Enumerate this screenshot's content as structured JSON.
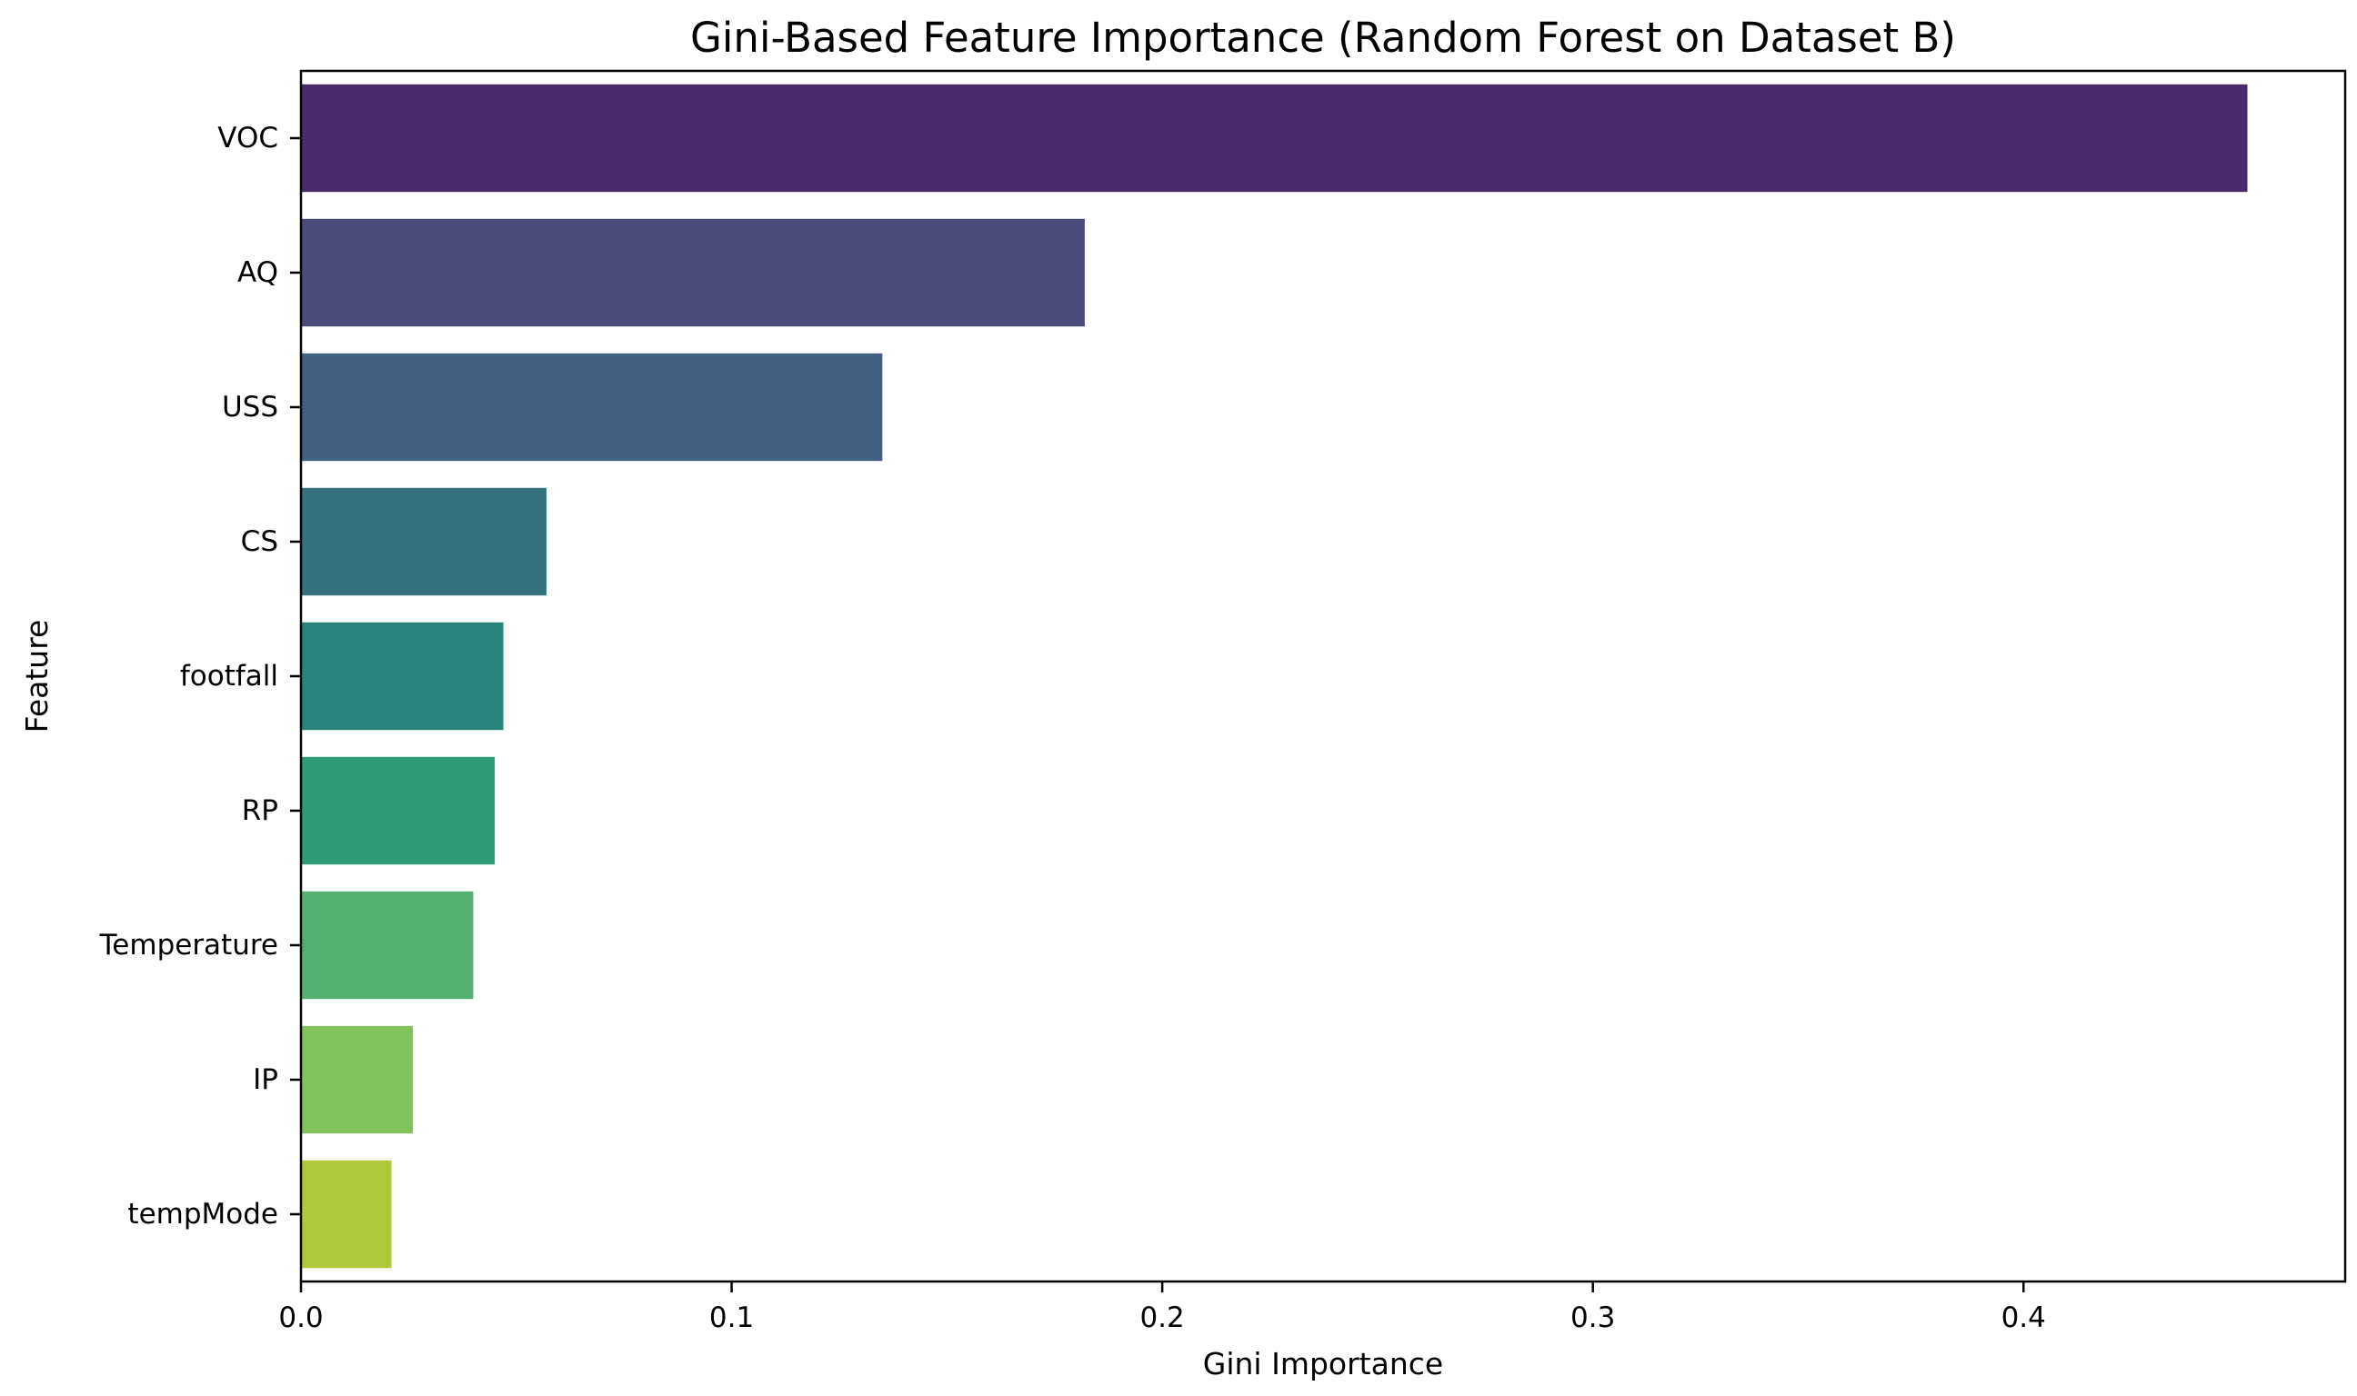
{
  "chart_data": {
    "type": "bar",
    "orientation": "horizontal",
    "title": "Gini-Based Feature Importance (Random Forest on Dataset B)",
    "xlabel": "Gini Importance",
    "ylabel": "Feature",
    "categories": [
      "VOC",
      "AQ",
      "USS",
      "CS",
      "footfall",
      "RP",
      "Temperature",
      "IP",
      "tempMode"
    ],
    "values": [
      0.452,
      0.182,
      0.135,
      0.057,
      0.047,
      0.045,
      0.04,
      0.026,
      0.021
    ],
    "colors": [
      "#482b6a",
      "#4b4c7b",
      "#416080",
      "#35727c",
      "#2b847c",
      "#319b78",
      "#53b072",
      "#80c35e",
      "#adc83a"
    ],
    "xlim": [
      0,
      0.4747
    ],
    "xticks": [
      0.0,
      0.1,
      0.2,
      0.3,
      0.4
    ],
    "xtick_labels": [
      "0.0",
      "0.1",
      "0.2",
      "0.3",
      "0.4"
    ],
    "grid": false,
    "legend": false
  }
}
